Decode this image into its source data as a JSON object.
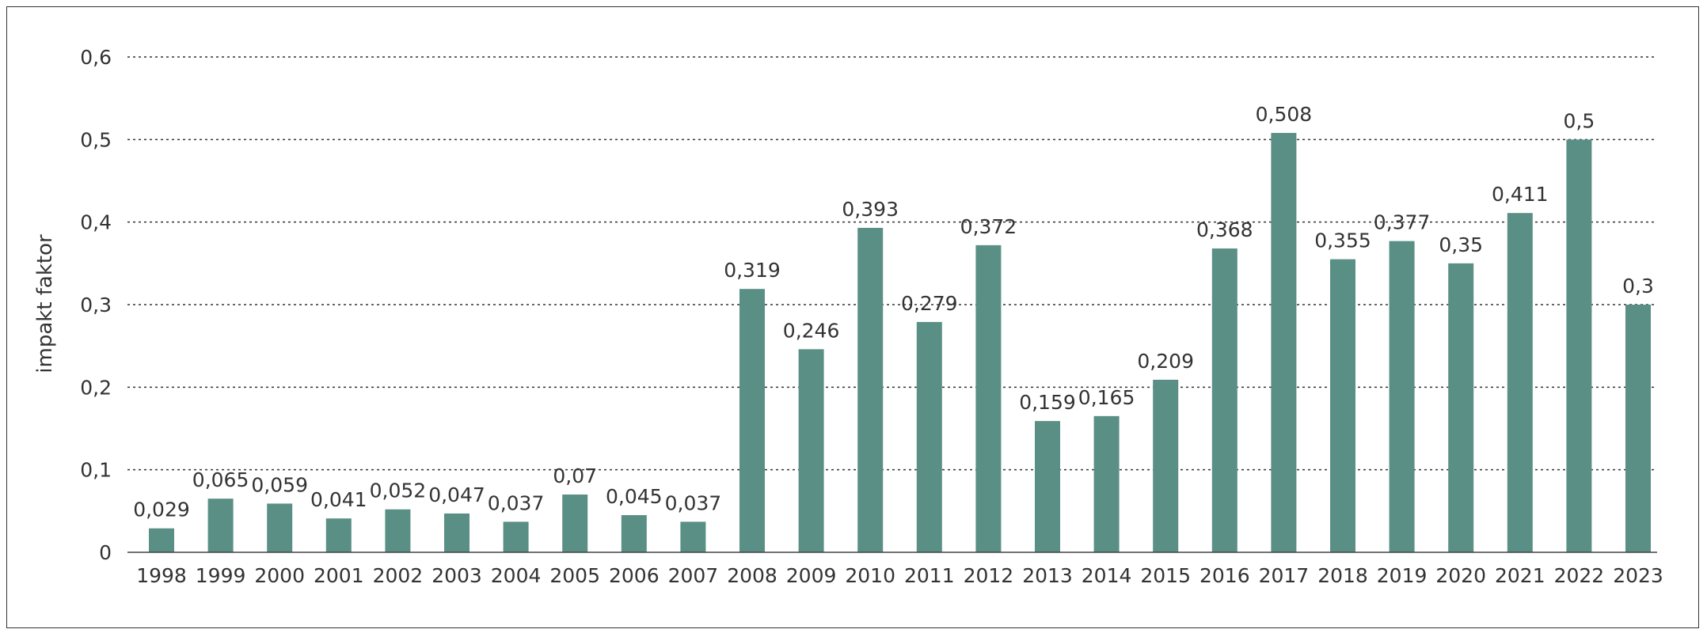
{
  "chart_data": {
    "type": "bar",
    "title": "",
    "xlabel": "",
    "ylabel": "impakt faktor",
    "ylim": [
      0,
      0.6
    ],
    "yticks": [
      0,
      0.1,
      0.2,
      0.3,
      0.4,
      0.5,
      0.6
    ],
    "ytick_labels": [
      "0",
      "0,1",
      "0,2",
      "0,3",
      "0,4",
      "0,5",
      "0,6"
    ],
    "grid": "horizontal dotted",
    "bar_color": "#5a8f85",
    "categories": [
      "1998",
      "1999",
      "2000",
      "2001",
      "2002",
      "2003",
      "2004",
      "2005",
      "2006",
      "2007",
      "2008",
      "2009",
      "2010",
      "2011",
      "2012",
      "2013",
      "2014",
      "2015",
      "2016",
      "2017",
      "2018",
      "2019",
      "2020",
      "2021",
      "2022",
      "2023"
    ],
    "values": [
      0.029,
      0.065,
      0.059,
      0.041,
      0.052,
      0.047,
      0.037,
      0.07,
      0.045,
      0.037,
      0.319,
      0.246,
      0.393,
      0.279,
      0.372,
      0.159,
      0.165,
      0.209,
      0.368,
      0.508,
      0.355,
      0.377,
      0.35,
      0.411,
      0.5,
      0.3
    ],
    "value_labels": [
      "0,029",
      "0,065",
      "0,059",
      "0,041",
      "0,052",
      "0,047",
      "0,037",
      "0,07",
      "0,045",
      "0,037",
      "0,319",
      "0,246",
      "0,393",
      "0,279",
      "0,372",
      "0,159",
      "0,165",
      "0,209",
      "0,368",
      "0,508",
      "0,355",
      "0,377",
      "0,35",
      "0,411",
      "0,5",
      "0,3"
    ]
  }
}
